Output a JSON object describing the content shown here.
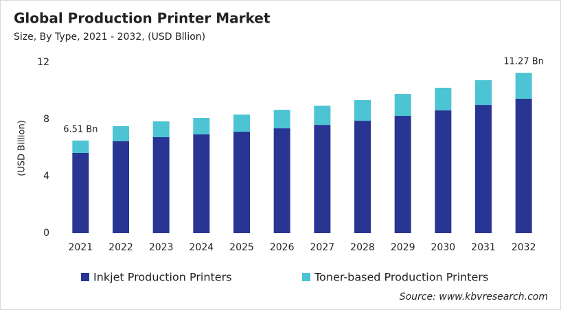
{
  "chart_data": {
    "type": "stacked-bar",
    "title": "Global Production Printer Market",
    "subtitle": "Size, By Type, 2021 - 2032, (USD Bllion)",
    "y_label": "(USD Billion)",
    "source": "Source: www.kbvresearch.com",
    "categories": [
      "2021",
      "2022",
      "2023",
      "2024",
      "2025",
      "2026",
      "2027",
      "2028",
      "2029",
      "2030",
      "2031",
      "2032"
    ],
    "series": [
      {
        "name": "Inkjet Production Printers",
        "color": "#283593",
        "values": [
          5.64,
          6.46,
          6.75,
          6.94,
          7.13,
          7.37,
          7.61,
          7.9,
          8.24,
          8.63,
          9.01,
          9.45
        ]
      },
      {
        "name": "Toner-based Production Printers",
        "color": "#4cc4d4",
        "values": [
          0.87,
          1.06,
          1.11,
          1.16,
          1.21,
          1.3,
          1.35,
          1.45,
          1.54,
          1.59,
          1.74,
          1.82
        ]
      }
    ],
    "annotations": [
      {
        "x": "2021",
        "value": 6.51,
        "label": "6.51 Bn"
      },
      {
        "x": "2032",
        "value": 11.27,
        "label": "11.27 Bn"
      }
    ],
    "ylim": [
      0,
      12
    ],
    "yticks": [
      0,
      4,
      8,
      12
    ],
    "grid": false,
    "legend": "bottom"
  }
}
